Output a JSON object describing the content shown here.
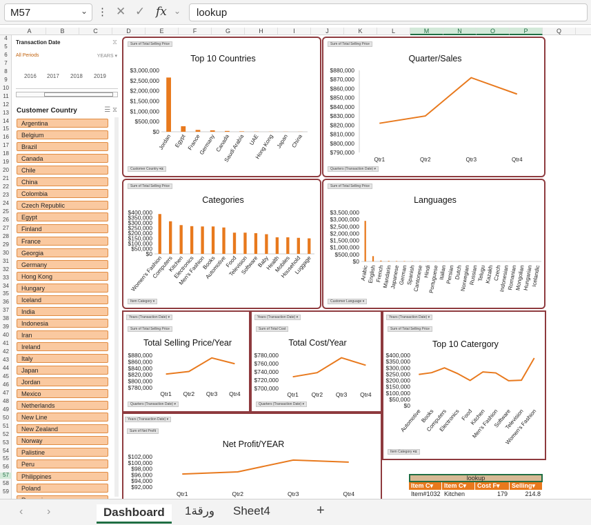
{
  "formula_bar": {
    "name_box": "M57",
    "formula": "lookup"
  },
  "columns": [
    "A",
    "B",
    "C",
    "D",
    "E",
    "F",
    "G",
    "H",
    "I",
    "J",
    "K",
    "L",
    "M",
    "N",
    "O",
    "P",
    "Q"
  ],
  "selected_columns": [
    "M",
    "N",
    "O",
    "P"
  ],
  "rows": [
    4,
    5,
    6,
    7,
    8,
    9,
    10,
    11,
    12,
    13,
    14,
    15,
    16,
    17,
    18,
    19,
    20,
    21,
    22,
    23,
    24,
    25,
    26,
    27,
    28,
    29,
    30,
    31,
    32,
    33,
    34,
    35,
    36,
    37,
    38,
    39,
    40,
    41,
    42,
    43,
    44,
    45,
    46,
    47,
    48,
    49,
    50,
    51,
    52,
    53,
    54,
    55,
    56,
    57,
    58,
    59
  ],
  "selected_row": 57,
  "timeline": {
    "title": "Transaction Date",
    "all_periods": "All Periods",
    "level": "YEARS",
    "years": [
      "2016",
      "2017",
      "2018",
      "2019"
    ]
  },
  "slicer": {
    "title": "Customer Country",
    "items": [
      "Argentina",
      "Belgium",
      "Brazil",
      "Canada",
      "Chile",
      "China",
      "Colombia",
      "Czech Republic",
      "Egypt",
      "Finland",
      "France",
      "Georgia",
      "Germany",
      "Hong Kong",
      "Hungary",
      "Iceland",
      "India",
      "Indonesia",
      "Iran",
      "Ireland",
      "Italy",
      "Japan",
      "Jordan",
      "Mexico",
      "Netherlands",
      "New Line",
      "New Zealand",
      "Norway",
      "Palistine",
      "Peru",
      "Philippines",
      "Poland",
      "Romania"
    ]
  },
  "charts": {
    "countries": {
      "title": "Top 10 Countries",
      "field_button": "Sum of Total Selling Price",
      "axis_button": "Customer Country",
      "chart_data": {
        "type": "bar",
        "categories": [
          "Jordan",
          "Egypt",
          "France",
          "Germany",
          "Canada",
          "Saudi Arabia",
          "UAE",
          "Hong Kong",
          "Japan",
          "China"
        ],
        "values": [
          2650000,
          270000,
          90000,
          70000,
          40000,
          20000,
          8000,
          6000,
          5000,
          4000
        ],
        "ylim": [
          0,
          3000000
        ],
        "yticks": [
          "$0",
          "$500,000",
          "$1,000,000",
          "$1,500,000",
          "$2,000,000",
          "$2,500,000",
          "$3,000,000"
        ]
      }
    },
    "quarter": {
      "title": "Quarter/Sales",
      "field_button": "Sum of Total Selling Price",
      "axis_button": "Quarters (Transaction Date)",
      "chart_data": {
        "type": "line",
        "categories": [
          "Qtr1",
          "Qtr2",
          "Qtr3",
          "Qtr4"
        ],
        "values": [
          822000,
          830000,
          872000,
          854000
        ],
        "ylim": [
          790000,
          880000
        ],
        "yticks": [
          "$790,000",
          "$800,000",
          "$810,000",
          "$820,000",
          "$830,000",
          "$840,000",
          "$850,000",
          "$860,000",
          "$870,000",
          "$880,000"
        ]
      }
    },
    "categories": {
      "title": "Categories",
      "field_button": "Sum of Total Selling Price",
      "axis_button": "Item Category",
      "chart_data": {
        "type": "bar",
        "categories": [
          "Women's Fashion",
          "Computers",
          "Kitchen",
          "Electronics",
          "Men's Fashion",
          "Books",
          "Automotive",
          "Food",
          "Television",
          "Software",
          "Baby",
          "Health",
          "Mobiles",
          "Household",
          "Luggage"
        ],
        "values": [
          385000,
          315000,
          278000,
          268000,
          265000,
          265000,
          255000,
          205000,
          205000,
          200000,
          190000,
          160000,
          160000,
          155000,
          150000
        ],
        "ylim": [
          0,
          400000
        ],
        "yticks": [
          "$0",
          "$50,000",
          "$100,000",
          "$150,000",
          "$200,000",
          "$250,000",
          "$300,000",
          "$350,000",
          "$400,000"
        ]
      }
    },
    "languages": {
      "title": "Languages",
      "field_button": "Sum of Total Selling Price",
      "axis_button": "Customer Language",
      "chart_data": {
        "type": "bar",
        "categories": [
          "Arabic",
          "English",
          "French",
          "Mandarin",
          "Japanese",
          "German",
          "Spanish",
          "Cantonese",
          "Hindi",
          "Portuguese",
          "Italian",
          "Persian",
          "Dutch",
          "Norwegian",
          "Russian",
          "Telugu",
          "Kazakh",
          "Czech",
          "Indonesian",
          "Romanian",
          "Mongolian",
          "Hungarian",
          "Icelandic"
        ],
        "values": [
          2900000,
          380000,
          60000,
          40000,
          30000,
          25000,
          20000,
          15000,
          12000,
          10000,
          9000,
          8000,
          7000,
          6000,
          6000,
          5000,
          5000,
          5000,
          4000,
          4000,
          3000,
          3000,
          3000
        ],
        "ylim": [
          0,
          3500000
        ],
        "yticks": [
          "$0",
          "$500,000",
          "$1,000,000",
          "$1,500,000",
          "$2,000,000",
          "$2,500,000",
          "$3,000,000",
          "$3,500,000"
        ]
      }
    },
    "selling_year": {
      "title": "Total Selling Price/Year",
      "filter_button": "Years (Transaction Date)",
      "field_button": "Sum of Total Selling Price",
      "axis_button": "Quarters (Transaction Date)",
      "chart_data": {
        "type": "line",
        "categories": [
          "Qtr1",
          "Qtr2",
          "Qtr3",
          "Qtr4"
        ],
        "values": [
          822000,
          830000,
          872000,
          854000
        ],
        "ylim": [
          780000,
          880000
        ],
        "yticks": [
          "$780,000",
          "$800,000",
          "$820,000",
          "$840,000",
          "$860,000",
          "$880,000"
        ]
      }
    },
    "cost_year": {
      "title": "Total Cost/Year",
      "filter_button": "Years (Transaction Date)",
      "field_button": "Sum of Total Cost",
      "axis_button": "Quarters (Transaction Date)",
      "chart_data": {
        "type": "line",
        "categories": [
          "Qtr1",
          "Qtr2",
          "Qtr3",
          "Qtr4"
        ],
        "values": [
          728000,
          738000,
          774000,
          756000
        ],
        "ylim": [
          700000,
          780000
        ],
        "yticks": [
          "$700,000",
          "$720,000",
          "$740,000",
          "$760,000",
          "$780,000"
        ]
      }
    },
    "top_category": {
      "title": "Top 10 Catergory",
      "filter_button": "Years (Transaction Date)",
      "field_button": "Sum of Total Selling Price",
      "axis_button": "Item Category",
      "chart_data": {
        "type": "line",
        "categories": [
          "Automotive",
          "Books",
          "Computers",
          "Electronics",
          "Food",
          "Kitchen",
          "Men's Fashion",
          "Software",
          "Television",
          "Women's Fashion"
        ],
        "values": [
          248000,
          262000,
          300000,
          256000,
          200000,
          268000,
          260000,
          198000,
          202000,
          378000
        ],
        "ylim": [
          0,
          400000
        ],
        "yticks": [
          "$0",
          "$50,000",
          "$100,000",
          "$150,000",
          "$200,000",
          "$250,000",
          "$300,000",
          "$350,000",
          "$400,000"
        ]
      }
    },
    "net_profit": {
      "title": "Net Profit/YEAR",
      "filter_button": "Years (Transaction Date)",
      "field_button": "Sum of Net Profit",
      "chart_data": {
        "type": "line",
        "categories": [
          "Qtr1",
          "Qtr2",
          "Qtr3",
          "Qtr4"
        ],
        "values": [
          96300,
          97000,
          100900,
          100200
        ],
        "ylim": [
          92000,
          102000
        ],
        "yticks": [
          "$92,000",
          "$94,000",
          "$96,000",
          "$98,000",
          "$100,000",
          "$102,000"
        ]
      }
    }
  },
  "lookup": {
    "header": "lookup",
    "columns": [
      "Item C",
      "Item C",
      "Cost F",
      "Selling"
    ],
    "row": [
      "Item#1032",
      "Kitchen",
      "179",
      "214.8"
    ]
  },
  "sheets": {
    "tabs": [
      "Dashboard",
      "ورقة1",
      "Sheet4"
    ],
    "active": "Dashboard"
  },
  "colors": {
    "accent": "#e8791d",
    "panel_border": "#8e3a3e",
    "excel_green": "#1f6e43",
    "slicer_fill": "#fac9a0"
  }
}
